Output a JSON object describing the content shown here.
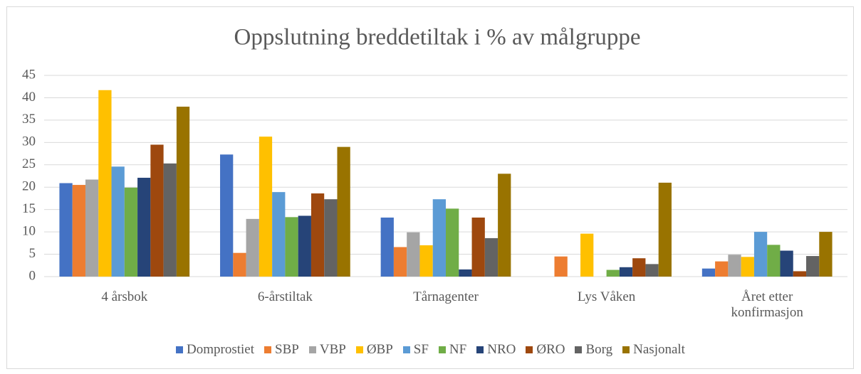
{
  "chart_data": {
    "type": "bar",
    "title": "Oppslutning breddetiltak i % av målgruppe",
    "categories": [
      "4 årsbok",
      "6-årstiltak",
      "Tårnagenter",
      "Lys Våken",
      "Året etter konfirmasjon"
    ],
    "series": [
      {
        "name": "Domprostiet",
        "color": "#4472c4",
        "values": [
          20.9,
          27.3,
          13.2,
          null,
          1.8
        ]
      },
      {
        "name": "SBP",
        "color": "#ed7d31",
        "values": [
          20.5,
          5.3,
          6.6,
          4.5,
          3.4
        ]
      },
      {
        "name": "VBP",
        "color": "#a5a5a5",
        "values": [
          21.7,
          12.9,
          9.9,
          null,
          4.9
        ]
      },
      {
        "name": "ØBP",
        "color": "#ffc000",
        "values": [
          41.7,
          31.3,
          7,
          9.6,
          4.4
        ]
      },
      {
        "name": "SF",
        "color": "#5b9bd5",
        "values": [
          24.6,
          18.9,
          17.3,
          null,
          10
        ]
      },
      {
        "name": "NF",
        "color": "#70ad47",
        "values": [
          19.9,
          13.3,
          15.2,
          1.5,
          7.1
        ]
      },
      {
        "name": "NRO",
        "color": "#264478",
        "values": [
          22.1,
          13.6,
          1.6,
          2.1,
          5.8
        ]
      },
      {
        "name": "ØRO",
        "color": "#9e480e",
        "values": [
          29.5,
          18.6,
          13.2,
          4.1,
          1.2
        ]
      },
      {
        "name": "Borg",
        "color": "#636363",
        "values": [
          25.3,
          17.3,
          8.6,
          2.8,
          4.6
        ]
      },
      {
        "name": "Nasjonalt",
        "color": "#997300",
        "values": [
          38,
          29,
          23,
          21,
          10
        ]
      }
    ],
    "ylim": [
      0,
      45
    ],
    "yticks": [
      0,
      5,
      10,
      15,
      20,
      25,
      30,
      35,
      40,
      45
    ],
    "grid": true,
    "legend": "bottom"
  }
}
